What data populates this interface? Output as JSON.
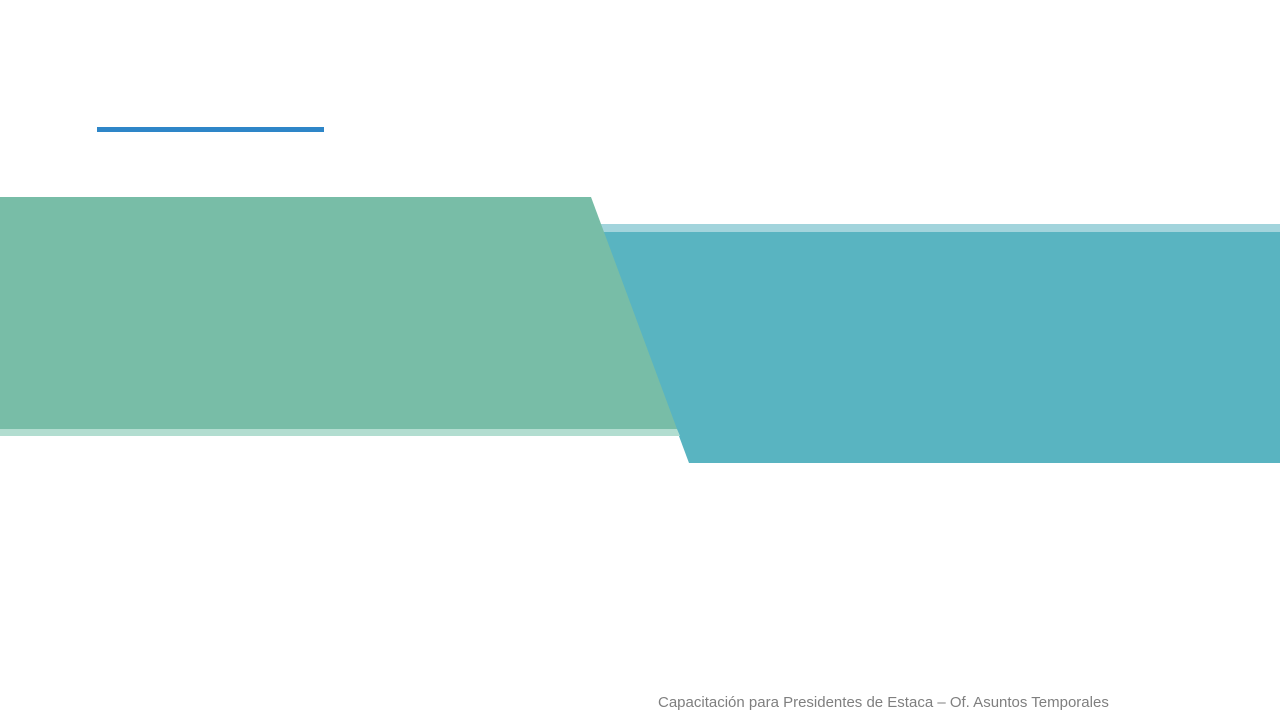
{
  "slide": {
    "footer_text": "Capacitación para Presidentes de Estaca – Of. Asuntos Temporales"
  },
  "colors": {
    "background": "#ffffff",
    "accent_line": "#2e86c8",
    "green_band": "#78bda7",
    "green_band_edge": "#b2ddd0",
    "teal_band": "#59b4c1",
    "teal_band_edge": "#a2d4dc",
    "footer_text": "#7f7f7f"
  }
}
